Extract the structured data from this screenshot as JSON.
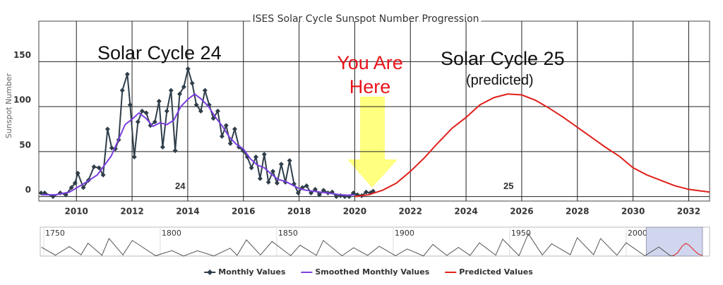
{
  "chart_data": [
    {
      "type": "line",
      "title": "ISES Solar Cycle Sunspot Number Progression",
      "y_axis_label": "Sunspot Number",
      "xlim": [
        2008.65,
        2032.75
      ],
      "ylim": [
        -5,
        195
      ],
      "xticks": [
        2010,
        2012,
        2014,
        2016,
        2018,
        2020,
        2022,
        2024,
        2026,
        2028,
        2030,
        2032
      ],
      "yticks": [
        0,
        50,
        100,
        150
      ],
      "grid": true,
      "legend": "bottom",
      "annotations": [
        "Solar Cycle 24",
        "You Are Here",
        "Solar Cycle 25",
        "(predicted)",
        "24",
        "25"
      ],
      "series": [
        {
          "name": "Monthly Values",
          "color": "#2f3e4a",
          "marker": "diamond",
          "x": [
            2008.73,
            2008.86,
            2009.16,
            2009.42,
            2009.62,
            2009.82,
            2009.95,
            2010.05,
            2010.25,
            2010.43,
            2010.63,
            2010.81,
            2010.96,
            2011.12,
            2011.27,
            2011.4,
            2011.52,
            2011.65,
            2011.83,
            2011.93,
            2012.08,
            2012.21,
            2012.36,
            2012.51,
            2012.66,
            2012.82,
            2012.97,
            2013.1,
            2013.25,
            2013.4,
            2013.55,
            2013.71,
            2013.86,
            2014.01,
            2014.16,
            2014.31,
            2014.47,
            2014.62,
            2014.77,
            2014.92,
            2015.08,
            2015.23,
            2015.38,
            2015.53,
            2015.69,
            2015.84,
            2015.99,
            2016.14,
            2016.29,
            2016.45,
            2016.6,
            2016.75,
            2016.9,
            2017.06,
            2017.21,
            2017.36,
            2017.51,
            2017.66,
            2017.82,
            2017.97,
            2018.12,
            2018.27,
            2018.43,
            2018.58,
            2018.73,
            2018.88,
            2019.04,
            2019.19,
            2019.34,
            2019.49,
            2019.64,
            2019.8,
            2019.95,
            2020.1,
            2020.25,
            2020.41,
            2020.56,
            2020.66
          ],
          "values": [
            4,
            4,
            0,
            4,
            2,
            10,
            15,
            26,
            10,
            18,
            33,
            32,
            24,
            75,
            54,
            53,
            63,
            118,
            136,
            102,
            44,
            83,
            95,
            93,
            79,
            83,
            106,
            55,
            95,
            118,
            51,
            114,
            122,
            142,
            126,
            102,
            95,
            118,
            102,
            87,
            95,
            67,
            79,
            59,
            75,
            55,
            51,
            44,
            32,
            44,
            20,
            47,
            16,
            28,
            15,
            36,
            16,
            40,
            14,
            4,
            10,
            12,
            4,
            8,
            2,
            7,
            4,
            5,
            0,
            1,
            0,
            0,
            4,
            2,
            1,
            5,
            4,
            6
          ]
        },
        {
          "name": "Smoothed Monthly Values",
          "color": "#7b3fe0",
          "x": [
            2008.75,
            2009.25,
            2009.75,
            2010.25,
            2010.75,
            2011.25,
            2011.75,
            2012.0,
            2012.25,
            2012.5,
            2012.75,
            2013.0,
            2013.25,
            2013.5,
            2013.75,
            2014.0,
            2014.25,
            2014.5,
            2014.75,
            2015.0,
            2015.25,
            2015.5,
            2015.75,
            2016.0,
            2016.25,
            2016.5,
            2016.75,
            2017.0,
            2017.25,
            2017.5,
            2017.75,
            2018.0,
            2018.25,
            2018.5,
            2018.75,
            2019.0,
            2019.25,
            2019.5,
            2019.75,
            2020.0
          ],
          "values": [
            2,
            2,
            5,
            14,
            24,
            45,
            80,
            86,
            93,
            87,
            78,
            82,
            80,
            85,
            100,
            108,
            114,
            108,
            100,
            88,
            78,
            66,
            58,
            53,
            42,
            35,
            32,
            25,
            19,
            17,
            13,
            9,
            7,
            6,
            5,
            4,
            3,
            2,
            1.5,
            2
          ]
        },
        {
          "name": "Predicted Values",
          "color": "#e0201b",
          "x": [
            2020,
            2020.5,
            2021,
            2021.5,
            2022,
            2022.5,
            2023,
            2023.5,
            2024,
            2024.5,
            2025,
            2025.5,
            2026,
            2026.5,
            2027,
            2027.5,
            2028,
            2028.5,
            2029,
            2029.5,
            2030,
            2030.5,
            2031,
            2031.5,
            2032,
            2032.5,
            2032.75
          ],
          "values": [
            0,
            2,
            7,
            15,
            28,
            43,
            60,
            76,
            88,
            102,
            110,
            114,
            113,
            107,
            98,
            88,
            77,
            66,
            55,
            45,
            32,
            24,
            18,
            12,
            8,
            6,
            5
          ]
        }
      ]
    },
    {
      "type": "line",
      "xlim": [
        1748.5,
        2035.8
      ],
      "ylim": [
        0,
        260
      ],
      "xticks": [
        1750,
        1800,
        1850,
        1900,
        1950,
        2000
      ],
      "series": [
        {
          "color": "#555555",
          "x": [
            1749,
            1755,
            1761,
            1766,
            1769,
            1775,
            1778,
            1784,
            1788,
            1798,
            1805,
            1810,
            1816,
            1823,
            1830,
            1833,
            1837,
            1843,
            1848,
            1856,
            1860,
            1867,
            1870,
            1878,
            1883,
            1889,
            1894,
            1901,
            1906,
            1913,
            1917,
            1923,
            1928,
            1933,
            1937,
            1944,
            1947,
            1954,
            1958,
            1964,
            1968,
            1976,
            1979,
            1986,
            1989,
            1996,
            2000,
            2008,
            2014,
            2019,
            2020.6
          ],
          "values": [
            80,
            8,
            86,
            11,
            116,
            7,
            158,
            10,
            141,
            3,
            49,
            0,
            48,
            1,
            71,
            7,
            146,
            10,
            131,
            4,
            98,
            7,
            140,
            2,
            75,
            6,
            88,
            3,
            64,
            1,
            105,
            6,
            78,
            6,
            119,
            8,
            152,
            3,
            201,
            10,
            111,
            12,
            165,
            12,
            158,
            8,
            120,
            2,
            82,
            2,
            6
          ]
        },
        {
          "color": "#e0201b",
          "x": [
            2020,
            2022,
            2024,
            2025.5,
            2027,
            2029,
            2031,
            2032.75
          ],
          "values": [
            0,
            28,
            88,
            114,
            98,
            55,
            18,
            5
          ]
        }
      ]
    }
  ]
}
